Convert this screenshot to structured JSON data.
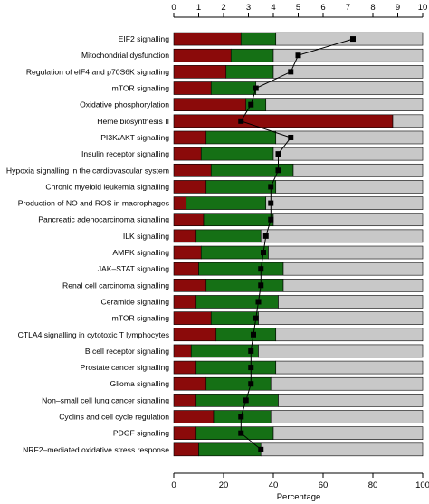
{
  "chart_data": {
    "type": "bar",
    "xlabel": "Percentage",
    "xlim": [
      0,
      100
    ],
    "xticks": [
      0,
      20,
      40,
      60,
      80,
      100
    ],
    "top_axis_lim": [
      0,
      10
    ],
    "top_axis_ticks": [
      0,
      1,
      2,
      3,
      4,
      5,
      6,
      7,
      8,
      9,
      10
    ],
    "categories": [
      "EIF2 signalling",
      "Mitochondrial dysfunction",
      "Regulation of eIF4 and p70S6K signalling",
      "mTOR signalling",
      "Oxidative phosphorylation",
      "Heme biosynthesis II",
      "PI3K/AKT signalling",
      "Insulin receptor signalling",
      "Hypoxia signalling in the cardiovascular system",
      "Chronic myeloid leukemia signalling",
      "Production of NO and ROS in macrophages",
      "Pancreatic adenocarcinoma signalling",
      "ILK signalling",
      "AMPK signalling",
      "JAK–STAT signalling",
      "Renal cell carcinoma signalling",
      "Ceramide signalling",
      "mTOR signalling",
      "CTLA4 signalling in cytotoxic T lymphocytes",
      "B cell receptor signalling",
      "Prostate cancer signalling",
      "Glioma signalling",
      "Non–small cell lung cancer signalling",
      "Cyclins and cell cycle regulation",
      "PDGF signalling",
      "NRF2–mediated oxidative stress response"
    ],
    "series": [
      {
        "color": "#8b0a0a",
        "values": [
          27,
          23,
          21,
          15,
          29,
          88,
          13,
          11,
          15,
          13,
          5,
          12,
          9,
          11,
          10,
          13,
          9,
          15,
          17,
          7,
          9,
          13,
          9,
          16,
          9,
          10
        ]
      },
      {
        "color": "#157015",
        "values": [
          14,
          17,
          19,
          18,
          8,
          0,
          28,
          29,
          33,
          28,
          32,
          28,
          26,
          27,
          34,
          31,
          33,
          19,
          24,
          27,
          32,
          26,
          33,
          23,
          31,
          25
        ]
      },
      {
        "color": "#c8c8c8",
        "values": [
          59,
          60,
          60,
          67,
          63,
          12,
          59,
          60,
          52,
          59,
          63,
          60,
          65,
          62,
          56,
          56,
          58,
          66,
          59,
          66,
          59,
          61,
          58,
          61,
          60,
          65
        ]
      }
    ],
    "line_series": {
      "axis": "top",
      "color": "#000000",
      "marker": "square",
      "values": [
        7.2,
        5.0,
        4.7,
        3.3,
        3.1,
        2.7,
        4.7,
        4.2,
        4.2,
        3.9,
        3.9,
        3.9,
        3.7,
        3.6,
        3.5,
        3.5,
        3.4,
        3.3,
        3.2,
        3.1,
        3.1,
        3.1,
        2.9,
        2.7,
        2.7,
        3.5
      ]
    },
    "grid": false,
    "legend": "none"
  }
}
